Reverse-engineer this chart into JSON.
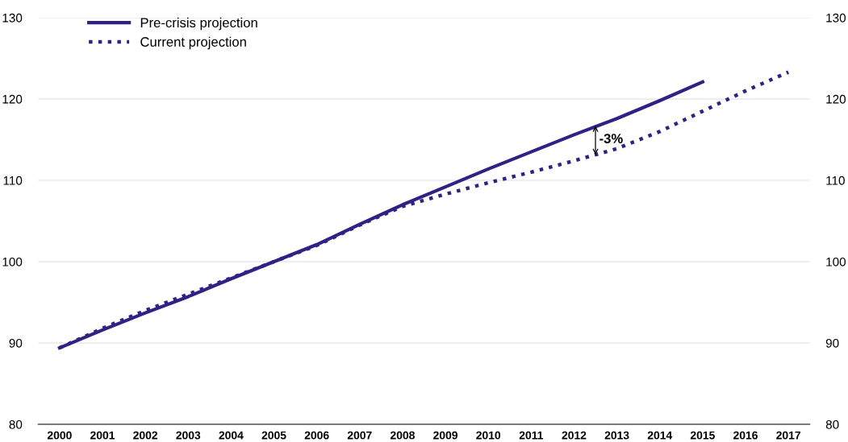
{
  "chart_data": {
    "type": "line",
    "x": [
      2000,
      2001,
      2002,
      2003,
      2004,
      2005,
      2006,
      2007,
      2008,
      2009,
      2010,
      2011,
      2012,
      2013,
      2014,
      2015,
      2016,
      2017
    ],
    "series": [
      {
        "name": "Pre-crisis projection",
        "color": "#2e2285",
        "line_style": "solid",
        "values": [
          89.4,
          91.6,
          93.7,
          95.7,
          97.9,
          100.0,
          102.1,
          104.6,
          107.0,
          109.2,
          111.4,
          113.5,
          115.6,
          117.6,
          119.8,
          122.1,
          null,
          null
        ]
      },
      {
        "name": "Current projection",
        "color": "#2e2285",
        "line_style": "dotted",
        "values": [
          89.4,
          91.8,
          94.0,
          96.0,
          98.0,
          100.0,
          102.0,
          104.5,
          106.8,
          108.3,
          109.7,
          111.0,
          112.4,
          113.9,
          116.0,
          118.5,
          121.0,
          123.3
        ]
      }
    ],
    "xlim": [
      1999.5,
      2017.5
    ],
    "xticks": [
      2000,
      2001,
      2002,
      2003,
      2004,
      2005,
      2006,
      2007,
      2008,
      2009,
      2010,
      2011,
      2012,
      2013,
      2014,
      2015,
      2016,
      2017
    ],
    "ylim": [
      80,
      130
    ],
    "yticks": [
      80,
      90,
      100,
      110,
      120,
      130
    ],
    "y2lim": [
      80,
      130
    ],
    "y2ticks": [
      80,
      90,
      100,
      110,
      120,
      130
    ],
    "annotations": [
      "-3%"
    ],
    "grid": "y",
    "legend": "top left",
    "marker": "none"
  }
}
